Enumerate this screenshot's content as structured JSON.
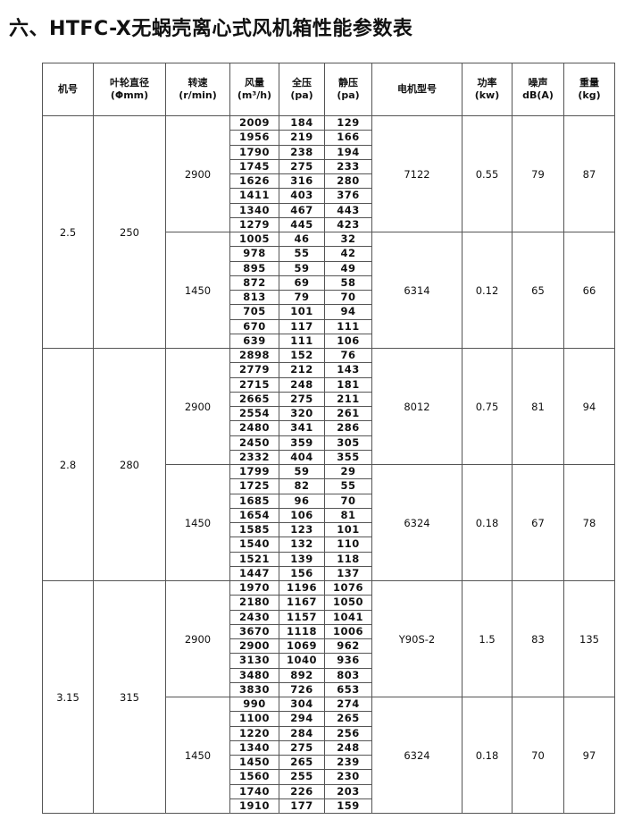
{
  "title": "六、HTFC-X无蜗壳离心式风机箱性能参数表",
  "headers": [
    {
      "l1": "机号",
      "l2": ""
    },
    {
      "l1": "叶轮直径",
      "l2": "(Φmm)"
    },
    {
      "l1": "转速",
      "l2": "(r/min)"
    },
    {
      "l1": "风量",
      "l2": "(m³/h)"
    },
    {
      "l1": "全压",
      "l2": "(pa)"
    },
    {
      "l1": "静压",
      "l2": "(pa)"
    },
    {
      "l1": "电机型号",
      "l2": ""
    },
    {
      "l1": "功率",
      "l2": "(kw)"
    },
    {
      "l1": "噪声",
      "l2": "dB(A)"
    },
    {
      "l1": "重量",
      "l2": "(kg)"
    }
  ],
  "models": [
    {
      "no": "2.5",
      "diameter": "250",
      "groups": [
        {
          "speed": "2900",
          "motor": "7122",
          "power": "0.55",
          "noise": "79",
          "weight": "87",
          "rows": [
            [
              "2009",
              "184",
              "129"
            ],
            [
              "1956",
              "219",
              "166"
            ],
            [
              "1790",
              "238",
              "194"
            ],
            [
              "1745",
              "275",
              "233"
            ],
            [
              "1626",
              "316",
              "280"
            ],
            [
              "1411",
              "403",
              "376"
            ],
            [
              "1340",
              "467",
              "443"
            ],
            [
              "1279",
              "445",
              "423"
            ]
          ]
        },
        {
          "speed": "1450",
          "motor": "6314",
          "power": "0.12",
          "noise": "65",
          "weight": "66",
          "rows": [
            [
              "1005",
              "46",
              "32"
            ],
            [
              "978",
              "55",
              "42"
            ],
            [
              "895",
              "59",
              "49"
            ],
            [
              "872",
              "69",
              "58"
            ],
            [
              "813",
              "79",
              "70"
            ],
            [
              "705",
              "101",
              "94"
            ],
            [
              "670",
              "117",
              "111"
            ],
            [
              "639",
              "111",
              "106"
            ]
          ]
        }
      ]
    },
    {
      "no": "2.8",
      "diameter": "280",
      "groups": [
        {
          "speed": "2900",
          "motor": "8012",
          "power": "0.75",
          "noise": "81",
          "weight": "94",
          "rows": [
            [
              "2898",
              "152",
              "76"
            ],
            [
              "2779",
              "212",
              "143"
            ],
            [
              "2715",
              "248",
              "181"
            ],
            [
              "2665",
              "275",
              "211"
            ],
            [
              "2554",
              "320",
              "261"
            ],
            [
              "2480",
              "341",
              "286"
            ],
            [
              "2450",
              "359",
              "305"
            ],
            [
              "2332",
              "404",
              "355"
            ]
          ]
        },
        {
          "speed": "1450",
          "motor": "6324",
          "power": "0.18",
          "noise": "67",
          "weight": "78",
          "rows": [
            [
              "1799",
              "59",
              "29"
            ],
            [
              "1725",
              "82",
              "55"
            ],
            [
              "1685",
              "96",
              "70"
            ],
            [
              "1654",
              "106",
              "81"
            ],
            [
              "1585",
              "123",
              "101"
            ],
            [
              "1540",
              "132",
              "110"
            ],
            [
              "1521",
              "139",
              "118"
            ],
            [
              "1447",
              "156",
              "137"
            ]
          ]
        }
      ]
    },
    {
      "no": "3.15",
      "diameter": "315",
      "groups": [
        {
          "speed": "2900",
          "motor": "Y90S-2",
          "power": "1.5",
          "noise": "83",
          "weight": "135",
          "rows": [
            [
              "1970",
              "1196",
              "1076"
            ],
            [
              "2180",
              "1167",
              "1050"
            ],
            [
              "2430",
              "1157",
              "1041"
            ],
            [
              "3670",
              "1118",
              "1006"
            ],
            [
              "2900",
              "1069",
              "962"
            ],
            [
              "3130",
              "1040",
              "936"
            ],
            [
              "3480",
              "892",
              "803"
            ],
            [
              "3830",
              "726",
              "653"
            ]
          ]
        },
        {
          "speed": "1450",
          "motor": "6324",
          "power": "0.18",
          "noise": "70",
          "weight": "97",
          "rows": [
            [
              "990",
              "304",
              "274"
            ],
            [
              "1100",
              "294",
              "265"
            ],
            [
              "1220",
              "284",
              "256"
            ],
            [
              "1340",
              "275",
              "248"
            ],
            [
              "1450",
              "265",
              "239"
            ],
            [
              "1560",
              "255",
              "230"
            ],
            [
              "1740",
              "226",
              "203"
            ],
            [
              "1910",
              "177",
              "159"
            ]
          ]
        }
      ]
    }
  ]
}
